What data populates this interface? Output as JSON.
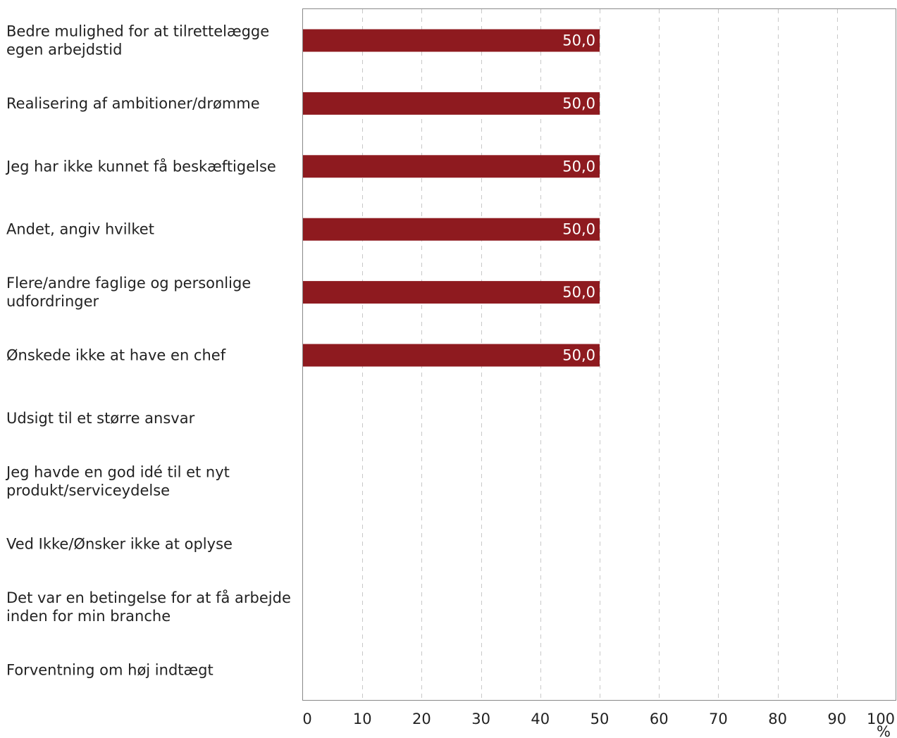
{
  "chart_data": {
    "type": "bar",
    "orientation": "horizontal",
    "categories": [
      "Bedre mulighed for at tilrettelægge egen arbejdstid",
      "Realisering af ambitioner/drømme",
      "Jeg har ikke kunnet få beskæftigelse",
      "Andet, angiv hvilket",
      "Flere/andre faglige og personlige udfordringer",
      "Ønskede ikke at have en chef",
      "Udsigt til et større ansvar",
      "Jeg havde en god idé til et nyt produkt/serviceydelse",
      "Ved Ikke/Ønsker ikke at oplyse",
      "Det var en betingelse for at få arbejde inden for min branche",
      "Forventning om høj indtægt"
    ],
    "category_lines": [
      [
        "Bedre mulighed for at tilrettelægge",
        "egen arbejdstid"
      ],
      [
        "Realisering af ambitioner/drømme"
      ],
      [
        "Jeg har ikke kunnet få beskæftigelse"
      ],
      [
        "Andet, angiv hvilket"
      ],
      [
        "Flere/andre faglige og personlige",
        "udfordringer"
      ],
      [
        "Ønskede ikke at have en chef"
      ],
      [
        "Udsigt til et større ansvar"
      ],
      [
        "Jeg havde en god idé til et nyt",
        "produkt/serviceydelse"
      ],
      [
        "Ved Ikke/Ønsker ikke at oplyse"
      ],
      [
        "Det var en betingelse for at få arbejde",
        "inden for min branche"
      ],
      [
        "Forventning om høj indtægt"
      ]
    ],
    "values": [
      50,
      50,
      50,
      50,
      50,
      50,
      null,
      null,
      null,
      null,
      null
    ],
    "data_labels": [
      "50,0",
      "50,0",
      "50,0",
      "50,0",
      "50,0",
      "50,0",
      "",
      "",
      "",
      "",
      ""
    ],
    "xlim": [
      0,
      100
    ],
    "xticks": [
      0,
      10,
      20,
      30,
      40,
      50,
      60,
      70,
      80,
      90,
      100
    ],
    "xtick_labels": [
      "0",
      "10",
      "20",
      "30",
      "40",
      "50",
      "60",
      "70",
      "80",
      "90",
      "100"
    ],
    "xunit": "%",
    "grid": "vertical-dashed",
    "bar_color": "#8e1a1f",
    "grid_color": "#c8c8c8",
    "axis_color": "#888888"
  }
}
